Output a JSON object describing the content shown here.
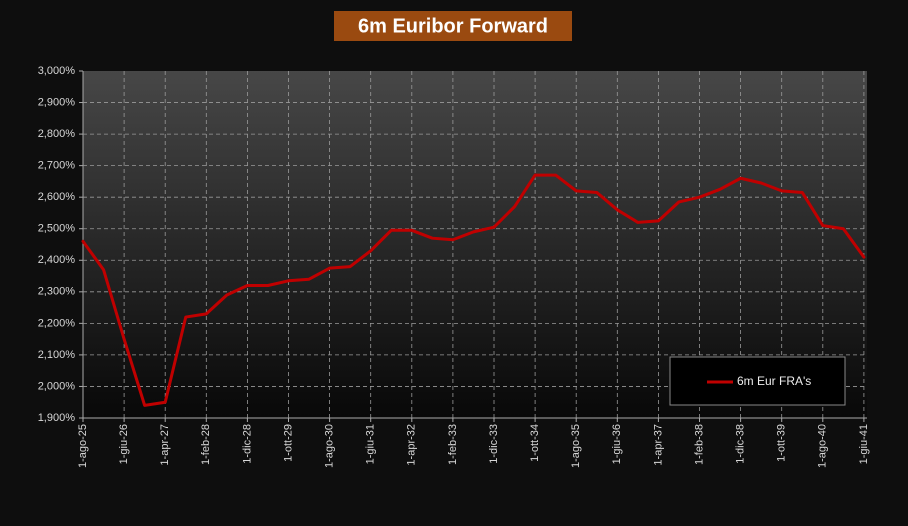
{
  "chart_data": {
    "type": "line",
    "title": "6m Euribor Forward",
    "categories": [
      "1-ago-25",
      null,
      "1-giu-26",
      null,
      "1-apr-27",
      null,
      "1-feb-28",
      null,
      "1-dic-28",
      null,
      "1-ott-29",
      null,
      "1-ago-30",
      null,
      "1-giu-31",
      null,
      "1-apr-32",
      null,
      "1-feb-33",
      null,
      "1-dic-33",
      null,
      "1-ott-34",
      null,
      "1-ago-35",
      null,
      "1-giu-36",
      null,
      "1-apr-37",
      null,
      "1-feb-38",
      null,
      "1-dic-38",
      null,
      "1-ott-39",
      null,
      "1-ago-40",
      null,
      "1-giu-41"
    ],
    "series": [
      {
        "name": "6m Eur FRA's",
        "color": "#c00000",
        "values": [
          2.46,
          2.37,
          2.15,
          1.94,
          1.95,
          2.22,
          2.23,
          2.29,
          2.32,
          2.32,
          2.335,
          2.34,
          2.375,
          2.38,
          2.43,
          2.495,
          2.495,
          2.47,
          2.465,
          2.49,
          2.505,
          2.57,
          2.67,
          2.67,
          2.62,
          2.615,
          2.56,
          2.52,
          2.525,
          2.585,
          2.6,
          2.625,
          2.66,
          2.645,
          2.62,
          2.615,
          2.51,
          2.5,
          2.41
        ]
      }
    ],
    "ylim": [
      1.9,
      3.0
    ],
    "yticks": [
      {
        "value": 1.9,
        "label": "1,900%"
      },
      {
        "value": 2.0,
        "label": "2,000%"
      },
      {
        "value": 2.1,
        "label": "2,100%"
      },
      {
        "value": 2.2,
        "label": "2,200%"
      },
      {
        "value": 2.3,
        "label": "2,300%"
      },
      {
        "value": 2.4,
        "label": "2,400%"
      },
      {
        "value": 2.5,
        "label": "2,500%"
      },
      {
        "value": 2.6,
        "label": "2,600%"
      },
      {
        "value": 2.7,
        "label": "2,700%"
      },
      {
        "value": 2.8,
        "label": "2,800%"
      },
      {
        "value": 2.9,
        "label": "2,900%"
      },
      {
        "value": 3.0,
        "label": "3,000%"
      }
    ],
    "grid": true,
    "legend": "bottom-right"
  }
}
